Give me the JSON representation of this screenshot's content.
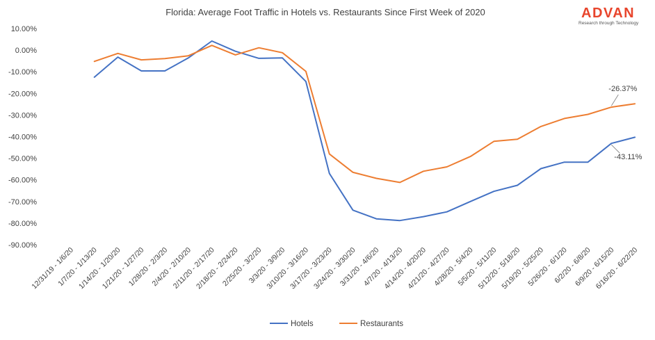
{
  "brand": {
    "name": "ADVAN",
    "tagline": "Research through Technology",
    "color": "#e8452c"
  },
  "chart_data": {
    "type": "line",
    "title": "Florida: Average Foot Traffic in Hotels vs. Restaurants Since First Week of 2020",
    "xlabel": "",
    "ylabel": "",
    "ylim": [
      -90,
      10
    ],
    "yticks": [
      "10.00%",
      "0.00%",
      "-10.00%",
      "-20.00%",
      "-30.00%",
      "-40.00%",
      "-50.00%",
      "-60.00%",
      "-70.00%",
      "-80.00%",
      "-90.00%"
    ],
    "grid": false,
    "legend": "bottom",
    "categories": [
      "12/31/19 - 1/6/20",
      "1/7/20 - 1/13/20",
      "1/14/20 - 1/20/20",
      "1/21/20 - 1/27/20",
      "1/28/20 - 2/3/20",
      "2/4/20 - 2/10/20",
      "2/11/20 - 2/17/20",
      "2/18/20 - 2/24/20",
      "2/25/20 - 3/2/20",
      "3/3/20 - 3/9/20",
      "3/10/20 - 3/16/20",
      "3/17/20 - 3/23/20",
      "3/24/20 - 3/30/20",
      "3/31/20 - 4/6/20",
      "4/7/20 - 4/13/20",
      "4/14/20 - 4/20/20",
      "4/21/20 - 4/27/20",
      "4/28/20 - 5/4/20",
      "5/5/20 - 5/11/20",
      "5/12/20 - 5/18/20",
      "5/19/20 - 5/25/20",
      "5/26/20 - 6/1/20",
      "6/2/20 - 6/8/20",
      "6/9/20 - 6/15/20",
      "6/16/20 - 6/22/20"
    ],
    "series": [
      {
        "name": "Hotels",
        "color": "#4472c4",
        "values": [
          null,
          -12.5,
          -3.2,
          -9.6,
          -9.6,
          -3.6,
          4.2,
          -0.5,
          -3.8,
          -3.6,
          -14.5,
          -57.0,
          -74.0,
          -78.0,
          -78.8,
          -77.0,
          -74.8,
          -70.0,
          -65.3,
          -62.5,
          -54.8,
          -51.8,
          -51.8,
          -43.11,
          -40.3
        ]
      },
      {
        "name": "Restaurants",
        "color": "#ed7d31",
        "values": [
          null,
          -5.2,
          -1.5,
          -4.5,
          -3.9,
          -2.6,
          2.2,
          -2.2,
          1.1,
          -1.2,
          -9.8,
          -48.0,
          -56.5,
          -59.3,
          -61.2,
          -56.0,
          -54.0,
          -49.2,
          -42.2,
          -41.2,
          -35.3,
          -31.6,
          -29.7,
          -26.37,
          -24.8
        ]
      }
    ],
    "annotations": [
      {
        "text": "-26.37%",
        "series": "Restaurants",
        "category": "6/9/20 - 6/15/20"
      },
      {
        "text": "-43.11%",
        "series": "Hotels",
        "category": "6/9/20 - 6/15/20"
      }
    ]
  }
}
